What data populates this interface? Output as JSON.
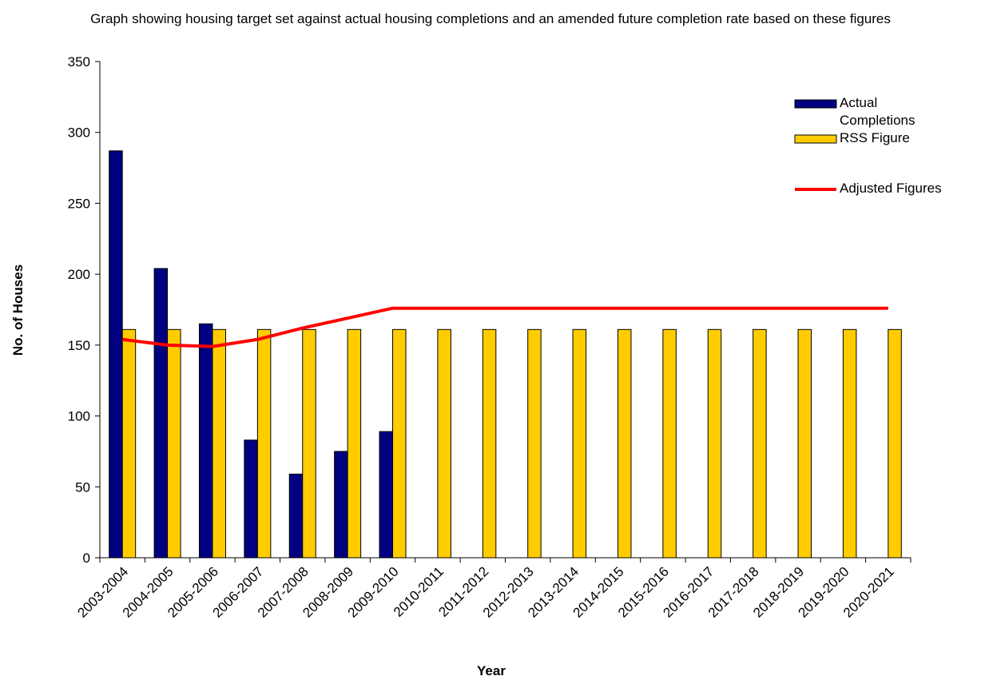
{
  "chart_data": {
    "type": "bar",
    "title": "Graph showing housing target set against actual housing completions and an amended future completion rate based on these figures",
    "x_label": "Year",
    "y_label": "No. of Houses",
    "categories": [
      "2003-2004",
      "2004-2005",
      "2005-2006",
      "2006-2007",
      "2007-2008",
      "2008-2009",
      "2009-2010",
      "2010-2011",
      "2011-2012",
      "2012-2013",
      "2013-2014",
      "2014-2015",
      "2015-2016",
      "2016-2017",
      "2017-2018",
      "2018-2019",
      "2019-2020",
      "2020-2021"
    ],
    "series": [
      {
        "name": "Actual Completions",
        "type": "bar",
        "color": "#000080",
        "values": [
          287,
          204,
          165,
          83,
          59,
          75,
          89,
          null,
          null,
          null,
          null,
          null,
          null,
          null,
          null,
          null,
          null,
          null
        ]
      },
      {
        "name": "RSS Figure",
        "type": "bar",
        "color": "#ffcc00",
        "values": [
          161,
          161,
          161,
          161,
          161,
          161,
          161,
          161,
          161,
          161,
          161,
          161,
          161,
          161,
          161,
          161,
          161,
          161
        ]
      },
      {
        "name": "Adjusted Figures",
        "type": "line",
        "color": "#ff0000",
        "values": [
          154,
          150,
          149,
          154,
          162,
          169,
          176,
          176,
          176,
          176,
          176,
          176,
          176,
          176,
          176,
          176,
          176,
          176
        ]
      }
    ],
    "ylim": [
      0,
      350
    ],
    "yticks": [
      0,
      50,
      100,
      150,
      200,
      250,
      300,
      350
    ],
    "legend": "top-right"
  }
}
